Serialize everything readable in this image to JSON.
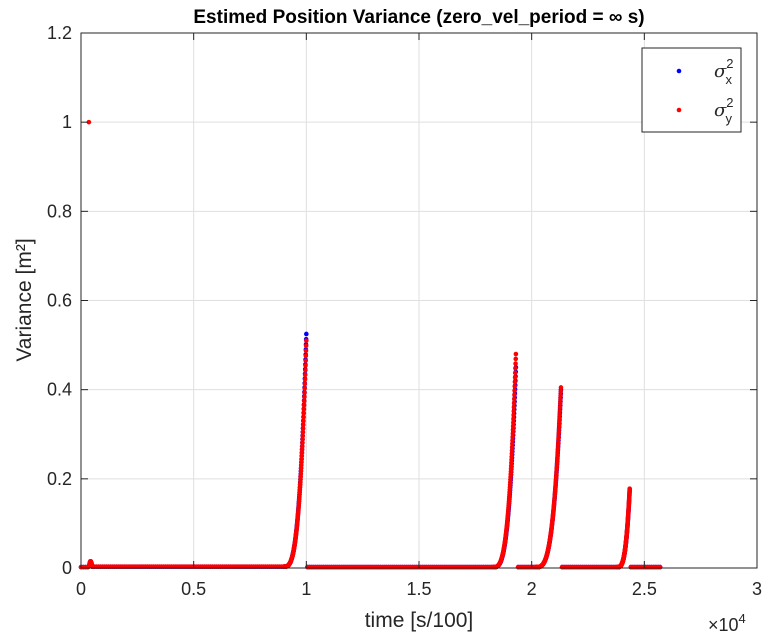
{
  "chart_data": {
    "type": "scatter",
    "title": "Estimed Position Variance (zero_vel_period = ∞ s)",
    "xlabel": "time [s/100]",
    "ylabel": "Variance [m²]",
    "xlim": [
      0,
      30000
    ],
    "ylim": [
      0,
      1.2
    ],
    "x_ticks": [
      0,
      5000,
      10000,
      15000,
      20000,
      25000,
      30000
    ],
    "x_tick_labels": [
      "0",
      "0.5",
      "1",
      "1.5",
      "2",
      "2.5",
      "3"
    ],
    "x_exponent_label": "×10",
    "x_exponent_power": "4",
    "y_ticks": [
      0,
      0.2,
      0.4,
      0.6,
      0.8,
      1.0,
      1.2
    ],
    "y_tick_labels": [
      "0",
      "0.2",
      "0.4",
      "0.6",
      "0.8",
      "1",
      "1.2"
    ],
    "grid": true,
    "legend_position": "top-right",
    "series": [
      {
        "name": "σx²",
        "legend_symbol": "σ",
        "legend_sup": "2",
        "legend_sub": "x",
        "color": "#0000ff",
        "segments": [
          {
            "x_start": 0,
            "x_end": 300,
            "y_base": 0.002,
            "shape": "flat"
          },
          {
            "x_start": 350,
            "x_end": 500,
            "y_peak": 0.015,
            "shape": "bump"
          },
          {
            "x_start": 500,
            "x_end": 9000,
            "y_base": 0.003,
            "shape": "flat"
          },
          {
            "x_start": 9000,
            "x_end": 10000,
            "y_base": 0.003,
            "y_peak": 0.525,
            "shape": "rise"
          },
          {
            "x_start": 10050,
            "x_end": 18300,
            "y_base": 0.002,
            "shape": "flat"
          },
          {
            "x_start": 18300,
            "x_end": 19300,
            "y_base": 0.002,
            "y_peak": 0.45,
            "shape": "rise"
          },
          {
            "x_start": 19400,
            "x_end": 20200,
            "y_base": 0.002,
            "shape": "flat"
          },
          {
            "x_start": 20200,
            "x_end": 21300,
            "y_base": 0.002,
            "y_peak": 0.4,
            "shape": "rise"
          },
          {
            "x_start": 21350,
            "x_end": 23800,
            "y_base": 0.002,
            "shape": "flat"
          },
          {
            "x_start": 23800,
            "x_end": 24350,
            "y_base": 0.002,
            "y_peak": 0.175,
            "shape": "rise"
          },
          {
            "x_start": 24400,
            "x_end": 25700,
            "y_base": 0.002,
            "shape": "flat"
          }
        ]
      },
      {
        "name": "σy²",
        "legend_symbol": "σ",
        "legend_sup": "2",
        "legend_sub": "y",
        "color": "#ff0000",
        "points_extra": [
          {
            "x": 350,
            "y": 1.0
          }
        ],
        "segments": [
          {
            "x_start": 0,
            "x_end": 300,
            "y_base": 0.002,
            "shape": "flat"
          },
          {
            "x_start": 350,
            "x_end": 500,
            "y_peak": 0.015,
            "shape": "bump"
          },
          {
            "x_start": 500,
            "x_end": 9000,
            "y_base": 0.003,
            "shape": "flat"
          },
          {
            "x_start": 9000,
            "x_end": 10000,
            "y_base": 0.003,
            "y_peak": 0.51,
            "shape": "rise"
          },
          {
            "x_start": 10050,
            "x_end": 18300,
            "y_base": 0.002,
            "shape": "flat"
          },
          {
            "x_start": 18300,
            "x_end": 19300,
            "y_base": 0.002,
            "y_peak": 0.48,
            "shape": "rise"
          },
          {
            "x_start": 19400,
            "x_end": 20200,
            "y_base": 0.002,
            "shape": "flat"
          },
          {
            "x_start": 20200,
            "x_end": 21300,
            "y_base": 0.002,
            "y_peak": 0.405,
            "shape": "rise"
          },
          {
            "x_start": 21350,
            "x_end": 23800,
            "y_base": 0.002,
            "shape": "flat"
          },
          {
            "x_start": 23800,
            "x_end": 24350,
            "y_base": 0.002,
            "y_peak": 0.178,
            "shape": "rise"
          },
          {
            "x_start": 24400,
            "x_end": 25700,
            "y_base": 0.002,
            "shape": "flat"
          }
        ]
      }
    ]
  }
}
